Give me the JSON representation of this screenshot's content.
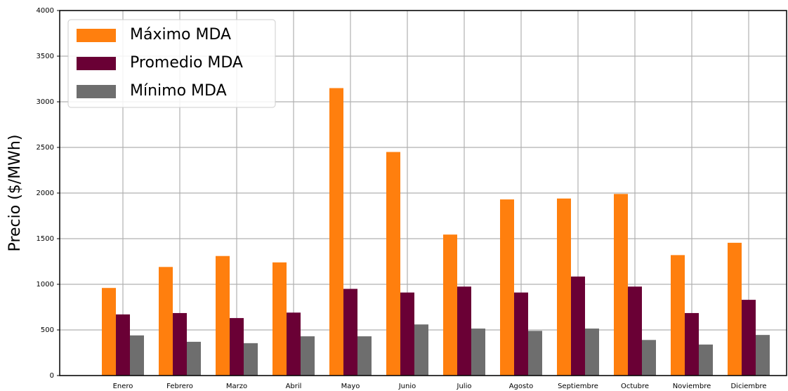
{
  "chart_data": {
    "type": "bar",
    "y_label": "Precio ($/MWh)",
    "categories": [
      "Enero",
      "Febrero",
      "Marzo",
      "Abril",
      "Mayo",
      "Junio",
      "Julio",
      "Agosto",
      "Septiembre",
      "Octubre",
      "Noviembre",
      "Diciembre"
    ],
    "series": [
      {
        "name": "Máximo MDA",
        "color": "#ff7f0e",
        "values": [
          960,
          1190,
          1310,
          1240,
          3150,
          2450,
          1545,
          1930,
          1940,
          1990,
          1320,
          1455
        ]
      },
      {
        "name": "Promedio MDA",
        "color": "#6a0035",
        "values": [
          670,
          685,
          630,
          690,
          950,
          910,
          975,
          910,
          1085,
          975,
          685,
          830
        ]
      },
      {
        "name": "Mínimo MDA",
        "color": "#6e6e6e",
        "values": [
          440,
          370,
          355,
          430,
          430,
          560,
          515,
          490,
          515,
          390,
          340,
          445
        ]
      }
    ],
    "ylim": [
      0,
      4000
    ],
    "yticks": [
      0,
      500,
      1000,
      1500,
      2000,
      2500,
      3000,
      3500,
      4000
    ],
    "grid": true,
    "legend": "upper left"
  }
}
